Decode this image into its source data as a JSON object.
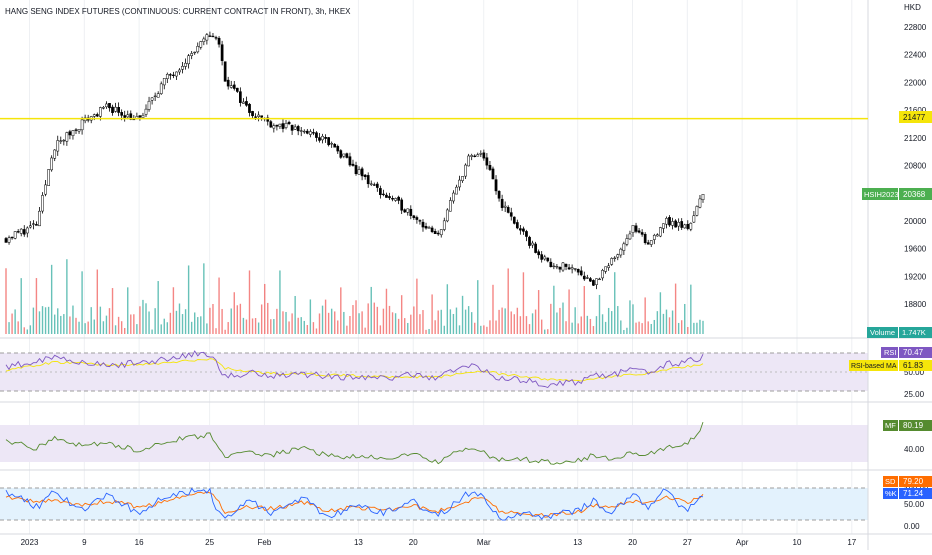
{
  "header": {
    "title": "HANG SENG INDEX FUTURES (CONTINUOUS: CURRENT CONTRACT IN FRONT), 3h, HKEX"
  },
  "price_axis": {
    "currency": "HKD",
    "ticks": [
      "22800",
      "22400",
      "22000",
      "21600",
      "21200",
      "20800",
      "20400",
      "20000",
      "19600",
      "19200",
      "18800"
    ]
  },
  "badges": {
    "level_value": "21477",
    "symbol": "HSIH2023",
    "last_price": "20368",
    "volume_label": "Volume",
    "volume_value": "1.747K",
    "rsi_label": "RSI",
    "rsi_value": "70.47",
    "rsi_ma_label": "RSI-based MA",
    "rsi_ma_value": "61.83",
    "mf_label": "MF",
    "mf_value": "80.19",
    "sd_label": "SD",
    "sd_value": "79.20",
    "k_label": "%K",
    "k_value": "71.24"
  },
  "rsi_axis": {
    "ticks": [
      "75.00",
      "50.00",
      "25.00"
    ]
  },
  "mf_axis": {
    "ticks": [
      "40.00"
    ]
  },
  "stoch_axis": {
    "ticks": [
      "100.00",
      "50.00",
      "0.00"
    ]
  },
  "time_axis": {
    "labels": [
      "2023",
      "9",
      "16",
      "25",
      "Feb",
      "13",
      "20",
      "Mar",
      "13",
      "20",
      "27",
      "Apr",
      "10",
      "17"
    ]
  },
  "colors": {
    "up": "#26a69a",
    "down": "#ef5350",
    "candle": "#000000",
    "level_line": "#f5e50a",
    "last_price_badge": "#4caf50",
    "rsi_line": "#7e57c2",
    "rsi_ma_line": "#f5e50a",
    "rsi_band_fill": "#ede7f6",
    "mf_line": "#558b2f",
    "mf_band_fill": "#ede7f6",
    "k_line": "#2962ff",
    "d_line": "#ff6d00",
    "stoch_band_fill": "#e3f2fd"
  },
  "chart_data": {
    "type": "line",
    "title": "HANG SENG INDEX FUTURES (CONTINUOUS: CURRENT CONTRACT IN FRONT), 3h, HKEX",
    "ylabel": "HKD",
    "ylim": [
      18600,
      22900
    ],
    "date_range": [
      "2022-12-30",
      "2023-03-29"
    ],
    "horizontal_level": 21477,
    "last_price": 20368,
    "series": [
      {
        "name": "HSIH2023",
        "x": [
          "2022-12-30",
          "2023-01-03",
          "2023-01-05",
          "2023-01-09",
          "2023-01-12",
          "2023-01-16",
          "2023-01-19",
          "2023-01-24",
          "2023-01-25",
          "2023-01-26",
          "2023-01-27",
          "2023-01-30",
          "2023-02-02",
          "2023-02-06",
          "2023-02-09",
          "2023-02-13",
          "2023-02-16",
          "2023-02-20",
          "2023-02-23",
          "2023-02-27",
          "2023-03-01",
          "2023-03-03",
          "2023-03-06",
          "2023-03-09",
          "2023-03-13",
          "2023-03-15",
          "2023-03-17",
          "2023-03-20",
          "2023-03-22",
          "2023-03-24",
          "2023-03-27",
          "2023-03-29"
        ],
        "values": [
          19750,
          19950,
          21050,
          21450,
          21650,
          21450,
          22000,
          22550,
          22700,
          22650,
          22050,
          21600,
          21400,
          21300,
          21150,
          20700,
          20400,
          20100,
          19750,
          20900,
          20950,
          20300,
          19800,
          19400,
          19300,
          19100,
          19350,
          19900,
          19650,
          20000,
          19900,
          20368
        ]
      }
    ],
    "volume": [
      1600,
      1300,
      2100,
      1800,
      1900,
      1200,
      1600,
      2000,
      1300,
      1400,
      1300,
      1500,
      1600,
      1200,
      1200,
      1300,
      1200,
      1400,
      1100,
      1500,
      1200,
      1500,
      1600,
      1700,
      1500,
      1300,
      1700,
      1200,
      1400,
      1300,
      1100,
      1747
    ],
    "rsi": [
      58,
      66,
      71,
      64,
      59,
      64,
      67,
      75,
      72,
      63,
      46,
      52,
      49,
      50,
      48,
      46,
      45,
      49,
      46,
      61,
      56,
      44,
      43,
      38,
      40,
      50,
      48,
      56,
      50,
      61,
      65,
      70.47
    ],
    "rsi_ma": [
      55,
      60,
      64,
      63,
      61,
      61,
      63,
      67,
      68,
      65,
      57,
      53,
      51,
      50,
      49,
      48,
      47,
      47,
      46,
      52,
      54,
      50,
      47,
      44,
      42,
      45,
      46,
      50,
      51,
      55,
      59,
      61.83
    ],
    "money_flow": [
      62,
      55,
      65,
      58,
      60,
      52,
      62,
      68,
      70,
      60,
      45,
      50,
      48,
      55,
      47,
      45,
      44,
      48,
      40,
      55,
      50,
      42,
      43,
      40,
      42,
      47,
      44,
      50,
      48,
      55,
      58,
      80.19
    ],
    "stoch_k": [
      90,
      40,
      85,
      30,
      80,
      20,
      75,
      95,
      90,
      30,
      10,
      60,
      20,
      70,
      10,
      50,
      20,
      60,
      10,
      85,
      70,
      5,
      20,
      10,
      30,
      60,
      20,
      80,
      40,
      90,
      30,
      71.24
    ],
    "stoch_d": [
      70,
      55,
      65,
      45,
      60,
      40,
      55,
      85,
      92,
      60,
      25,
      40,
      35,
      55,
      30,
      40,
      30,
      45,
      25,
      60,
      75,
      30,
      15,
      15,
      25,
      45,
      35,
      60,
      50,
      75,
      55,
      79.2
    ]
  }
}
